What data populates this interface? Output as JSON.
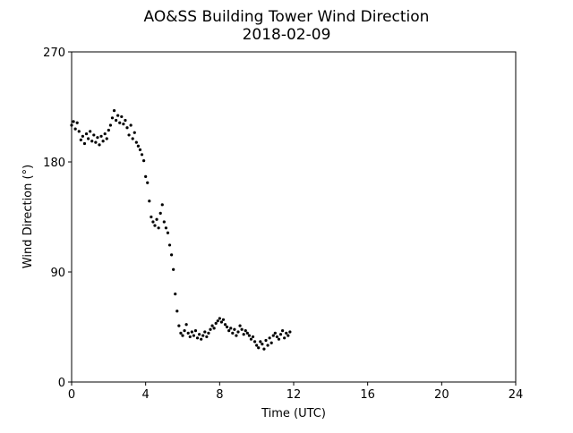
{
  "chart_data": {
    "type": "scatter",
    "title": "AO&SS Building Tower Wind Direction",
    "subtitle": "2018-02-09",
    "x_label": "Time (UTC)",
    "y_label": "Wind Direction (°)",
    "color": "#000000",
    "xlim": [
      0,
      24
    ],
    "xticks": [
      0,
      4,
      8,
      12,
      16,
      20,
      24
    ],
    "ylim": [
      0,
      270
    ],
    "yticks": [
      0,
      90,
      180,
      270
    ],
    "x": [
      0,
      0.1,
      0.2,
      0.3,
      0.4,
      0.5,
      0.6,
      0.7,
      0.8,
      0.9,
      1,
      1.1,
      1.2,
      1.3,
      1.4,
      1.5,
      1.6,
      1.7,
      1.8,
      1.9,
      2,
      2.1,
      2.2,
      2.3,
      2.4,
      2.5,
      2.6,
      2.7,
      2.8,
      2.9,
      3,
      3.1,
      3.2,
      3.3,
      3.4,
      3.5,
      3.6,
      3.7,
      3.8,
      3.9,
      4,
      4.1,
      4.2,
      4.3,
      4.4,
      4.5,
      4.6,
      4.7,
      4.8,
      4.9,
      5,
      5.1,
      5.2,
      5.3,
      5.4,
      5.5,
      5.6,
      5.7,
      5.8,
      5.9,
      6,
      6.1,
      6.2,
      6.3,
      6.4,
      6.5,
      6.6,
      6.7,
      6.8,
      6.9,
      7,
      7.1,
      7.2,
      7.3,
      7.4,
      7.5,
      7.6,
      7.7,
      7.8,
      7.9,
      8,
      8.1,
      8.2,
      8.3,
      8.4,
      8.5,
      8.6,
      8.7,
      8.8,
      8.9,
      9,
      9.1,
      9.2,
      9.3,
      9.4,
      9.5,
      9.6,
      9.7,
      9.8,
      9.9,
      10,
      10.1,
      10.2,
      10.3,
      10.4,
      10.5,
      10.6,
      10.7,
      10.8,
      10.9,
      11,
      11.1,
      11.2,
      11.3,
      11.4,
      11.5,
      11.6,
      11.7,
      11.8
    ],
    "values": [
      210,
      213,
      207,
      212,
      205,
      198,
      201,
      195,
      203,
      199,
      205,
      197,
      202,
      196,
      200,
      194,
      201,
      197,
      203,
      199,
      206,
      210,
      216,
      222,
      214,
      218,
      212,
      217,
      211,
      214,
      208,
      202,
      210,
      199,
      204,
      196,
      193,
      190,
      186,
      181,
      168,
      163,
      148,
      135,
      131,
      128,
      133,
      126,
      138,
      145,
      131,
      126,
      122,
      112,
      104,
      92,
      72,
      58,
      46,
      40,
      38,
      42,
      47,
      40,
      37,
      41,
      38,
      42,
      36,
      39,
      35,
      38,
      41,
      37,
      40,
      43,
      46,
      44,
      48,
      50,
      52,
      49,
      51,
      47,
      45,
      42,
      44,
      40,
      43,
      38,
      41,
      46,
      43,
      39,
      42,
      40,
      38,
      35,
      37,
      33,
      30,
      28,
      33,
      31,
      27,
      34,
      30,
      36,
      32,
      38,
      40,
      37,
      35,
      39,
      42,
      36,
      40,
      38,
      41
    ]
  }
}
